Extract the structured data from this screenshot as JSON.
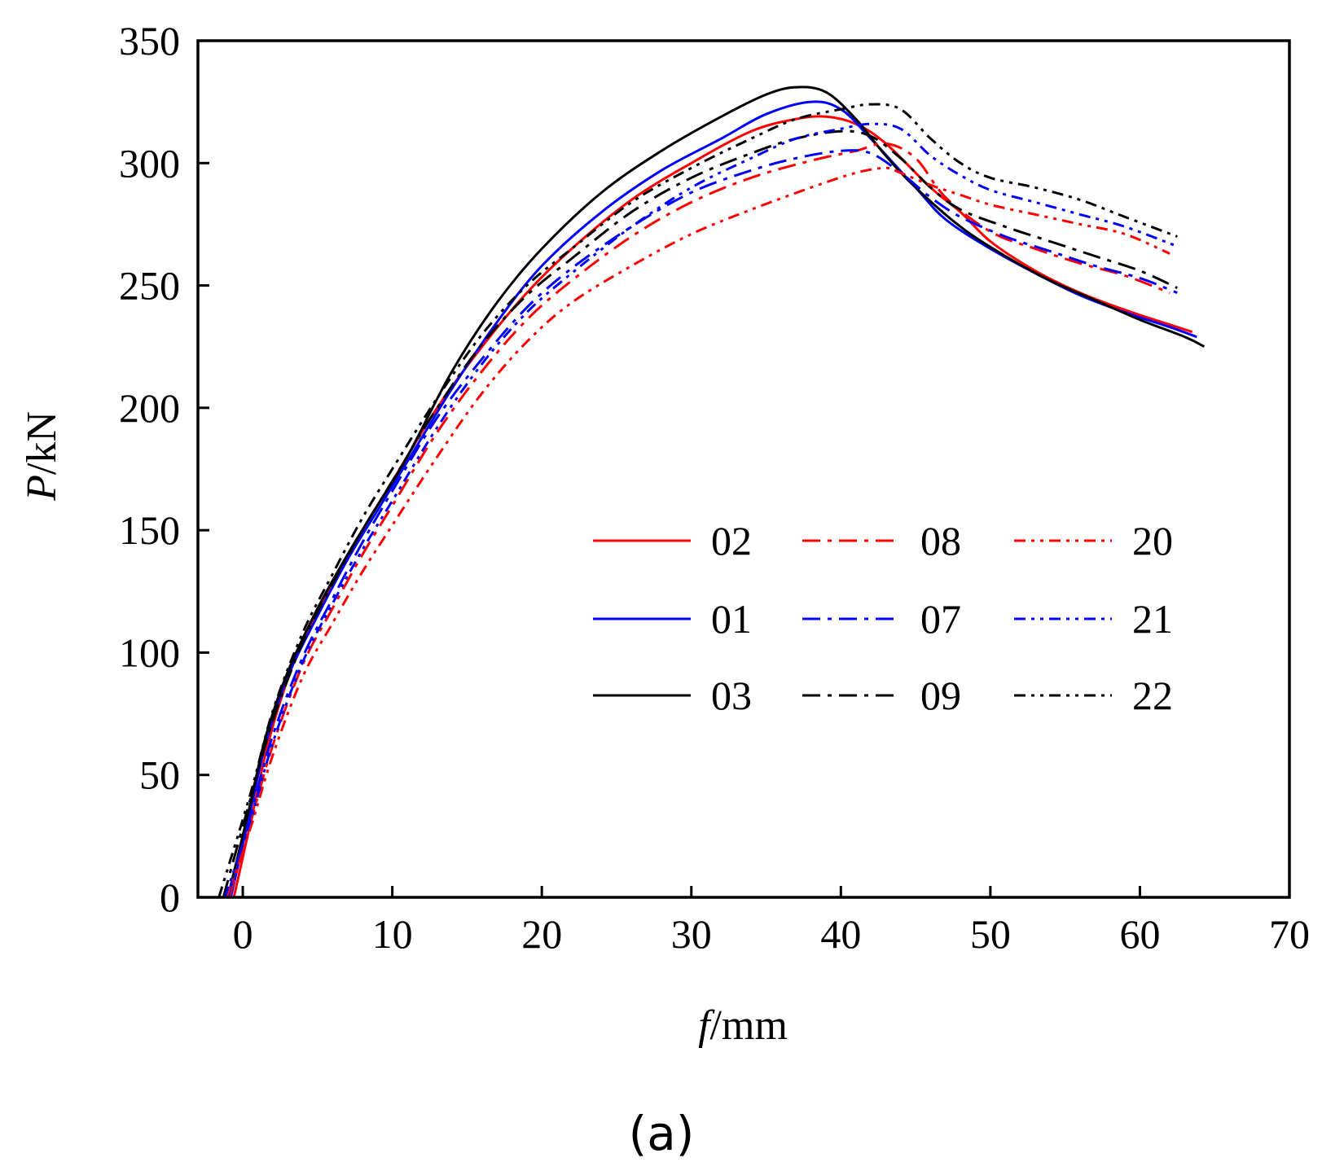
{
  "chart_data": {
    "type": "line",
    "panel_label": "(a)",
    "xlabel_italic": "f",
    "xlabel_unit": "/mm",
    "ylabel_italic": "P",
    "ylabel_unit": "/kN",
    "xlim": [
      -3,
      70
    ],
    "ylim": [
      0,
      350
    ],
    "xticks": [
      0,
      10,
      20,
      30,
      40,
      50,
      60,
      70
    ],
    "yticks": [
      0,
      50,
      100,
      150,
      200,
      250,
      300,
      350
    ],
    "grid": false,
    "legend_position": "center-right",
    "series": [
      {
        "name": "02",
        "color": "#ff0000",
        "dash": "solid",
        "points": [
          [
            -0.6,
            0
          ],
          [
            0.5,
            30
          ],
          [
            1.5,
            58
          ],
          [
            2.5,
            80
          ],
          [
            4,
            105
          ],
          [
            6,
            128
          ],
          [
            8,
            150
          ],
          [
            10,
            170
          ],
          [
            13,
            200
          ],
          [
            16,
            225
          ],
          [
            19,
            247
          ],
          [
            22,
            265
          ],
          [
            26,
            285
          ],
          [
            30,
            300
          ],
          [
            34,
            313
          ],
          [
            37,
            318
          ],
          [
            39,
            319
          ],
          [
            41,
            316
          ],
          [
            43,
            308
          ],
          [
            46,
            290
          ],
          [
            48,
            280
          ],
          [
            50,
            268
          ],
          [
            53,
            256
          ],
          [
            56,
            247
          ],
          [
            59,
            240
          ],
          [
            62,
            234
          ],
          [
            63.5,
            231
          ]
        ]
      },
      {
        "name": "01",
        "color": "#0000ff",
        "dash": "solid",
        "points": [
          [
            -0.8,
            0
          ],
          [
            0.5,
            35
          ],
          [
            1.5,
            62
          ],
          [
            3,
            90
          ],
          [
            5,
            115
          ],
          [
            7,
            138
          ],
          [
            9,
            158
          ],
          [
            11,
            178
          ],
          [
            14,
            208
          ],
          [
            17,
            235
          ],
          [
            20,
            258
          ],
          [
            24,
            280
          ],
          [
            28,
            297
          ],
          [
            32,
            310
          ],
          [
            35,
            320
          ],
          [
            38,
            325
          ],
          [
            40,
            322
          ],
          [
            42,
            310
          ],
          [
            45,
            290
          ],
          [
            47,
            277
          ],
          [
            50,
            265
          ],
          [
            53,
            255
          ],
          [
            56,
            246
          ],
          [
            59,
            239
          ],
          [
            62,
            233
          ],
          [
            63.8,
            229
          ]
        ]
      },
      {
        "name": "03",
        "color": "#000000",
        "dash": "solid",
        "points": [
          [
            -1,
            0
          ],
          [
            0.5,
            38
          ],
          [
            1.5,
            65
          ],
          [
            3,
            92
          ],
          [
            5,
            118
          ],
          [
            7,
            140
          ],
          [
            9,
            160
          ],
          [
            11,
            180
          ],
          [
            14,
            215
          ],
          [
            17,
            243
          ],
          [
            20,
            265
          ],
          [
            24,
            288
          ],
          [
            28,
            305
          ],
          [
            32,
            319
          ],
          [
            35,
            328
          ],
          [
            37,
            331
          ],
          [
            39,
            329
          ],
          [
            41,
            318
          ],
          [
            43,
            303
          ],
          [
            45,
            290
          ],
          [
            48,
            274
          ],
          [
            51,
            262
          ],
          [
            54,
            252
          ],
          [
            57,
            244
          ],
          [
            60,
            236
          ],
          [
            63,
            229
          ],
          [
            64.3,
            225
          ]
        ]
      },
      {
        "name": "08",
        "color": "#ff0000",
        "dash": "22 9 5 9",
        "points": [
          [
            -0.9,
            0
          ],
          [
            0.5,
            30
          ],
          [
            2,
            62
          ],
          [
            4,
            95
          ],
          [
            6,
            118
          ],
          [
            8,
            140
          ],
          [
            10,
            160
          ],
          [
            13,
            190
          ],
          [
            16,
            215
          ],
          [
            19,
            236
          ],
          [
            22,
            252
          ],
          [
            26,
            270
          ],
          [
            30,
            284
          ],
          [
            34,
            294
          ],
          [
            38,
            301
          ],
          [
            41,
            305
          ],
          [
            43,
            308
          ],
          [
            45,
            302
          ],
          [
            47,
            286
          ],
          [
            50,
            272
          ],
          [
            53,
            265
          ],
          [
            56,
            259
          ],
          [
            59,
            254
          ],
          [
            62,
            247
          ]
        ]
      },
      {
        "name": "07",
        "color": "#0000ff",
        "dash": "22 9 5 9",
        "points": [
          [
            -1,
            0
          ],
          [
            0.5,
            33
          ],
          [
            2,
            66
          ],
          [
            4,
            98
          ],
          [
            6,
            122
          ],
          [
            8,
            145
          ],
          [
            10,
            166
          ],
          [
            13,
            196
          ],
          [
            16,
            220
          ],
          [
            19,
            241
          ],
          [
            22,
            257
          ],
          [
            26,
            274
          ],
          [
            30,
            288
          ],
          [
            34,
            297
          ],
          [
            37,
            302
          ],
          [
            40,
            305
          ],
          [
            42,
            304
          ],
          [
            44,
            296
          ],
          [
            46,
            286
          ],
          [
            48,
            278
          ],
          [
            51,
            270
          ],
          [
            54,
            264
          ],
          [
            57,
            258
          ],
          [
            60,
            253
          ],
          [
            62.5,
            247
          ]
        ]
      },
      {
        "name": "09",
        "color": "#000000",
        "dash": "22 9 5 9",
        "points": [
          [
            -1.3,
            0
          ],
          [
            0.5,
            40
          ],
          [
            2,
            72
          ],
          [
            4,
            104
          ],
          [
            6,
            128
          ],
          [
            8,
            150
          ],
          [
            10,
            170
          ],
          [
            13,
            200
          ],
          [
            16,
            226
          ],
          [
            19,
            246
          ],
          [
            22,
            261
          ],
          [
            26,
            280
          ],
          [
            30,
            294
          ],
          [
            34,
            304
          ],
          [
            37,
            310
          ],
          [
            40,
            313
          ],
          [
            42,
            311
          ],
          [
            44,
            302
          ],
          [
            46,
            290
          ],
          [
            48,
            281
          ],
          [
            51,
            274
          ],
          [
            54,
            268
          ],
          [
            57,
            262
          ],
          [
            60,
            256
          ],
          [
            62.5,
            249
          ]
        ]
      },
      {
        "name": "20",
        "color": "#ff0000",
        "dash": "14 7 4 7 4 7",
        "points": [
          [
            -1.1,
            0
          ],
          [
            0.5,
            28
          ],
          [
            2,
            58
          ],
          [
            4,
            90
          ],
          [
            6,
            112
          ],
          [
            8,
            133
          ],
          [
            10,
            152
          ],
          [
            13,
            180
          ],
          [
            16,
            206
          ],
          [
            19,
            227
          ],
          [
            22,
            243
          ],
          [
            26,
            258
          ],
          [
            30,
            271
          ],
          [
            34,
            281
          ],
          [
            38,
            290
          ],
          [
            41,
            296
          ],
          [
            43,
            298
          ],
          [
            44,
            296
          ],
          [
            46,
            291
          ],
          [
            48,
            287
          ],
          [
            50,
            283
          ],
          [
            53,
            279
          ],
          [
            56,
            275
          ],
          [
            59,
            271
          ],
          [
            62,
            263
          ]
        ]
      },
      {
        "name": "21",
        "color": "#0000ff",
        "dash": "14 7 4 7 4 7",
        "points": [
          [
            -1.2,
            0
          ],
          [
            0.5,
            31
          ],
          [
            2,
            63
          ],
          [
            4,
            96
          ],
          [
            6,
            120
          ],
          [
            8,
            142
          ],
          [
            10,
            162
          ],
          [
            13,
            192
          ],
          [
            16,
            218
          ],
          [
            19,
            239
          ],
          [
            22,
            255
          ],
          [
            26,
            274
          ],
          [
            30,
            290
          ],
          [
            34,
            302
          ],
          [
            37,
            310
          ],
          [
            40,
            314
          ],
          [
            42,
            316
          ],
          [
            44,
            314
          ],
          [
            46,
            303
          ],
          [
            48,
            295
          ],
          [
            50,
            289
          ],
          [
            53,
            284
          ],
          [
            56,
            279
          ],
          [
            59,
            274
          ],
          [
            62.5,
            266
          ]
        ]
      },
      {
        "name": "22",
        "color": "#000000",
        "dash": "14 7 4 7 4 7",
        "points": [
          [
            -1.6,
            0
          ],
          [
            0.5,
            42
          ],
          [
            2,
            76
          ],
          [
            4,
            108
          ],
          [
            6,
            132
          ],
          [
            8,
            155
          ],
          [
            10,
            175
          ],
          [
            13,
            204
          ],
          [
            16,
            230
          ],
          [
            19,
            250
          ],
          [
            22,
            265
          ],
          [
            26,
            284
          ],
          [
            30,
            298
          ],
          [
            34,
            310
          ],
          [
            37,
            318
          ],
          [
            40,
            322
          ],
          [
            42,
            324
          ],
          [
            44,
            322
          ],
          [
            46,
            310
          ],
          [
            48,
            300
          ],
          [
            50,
            294
          ],
          [
            53,
            290
          ],
          [
            56,
            285
          ],
          [
            59,
            278
          ],
          [
            62.5,
            270
          ]
        ]
      }
    ]
  }
}
